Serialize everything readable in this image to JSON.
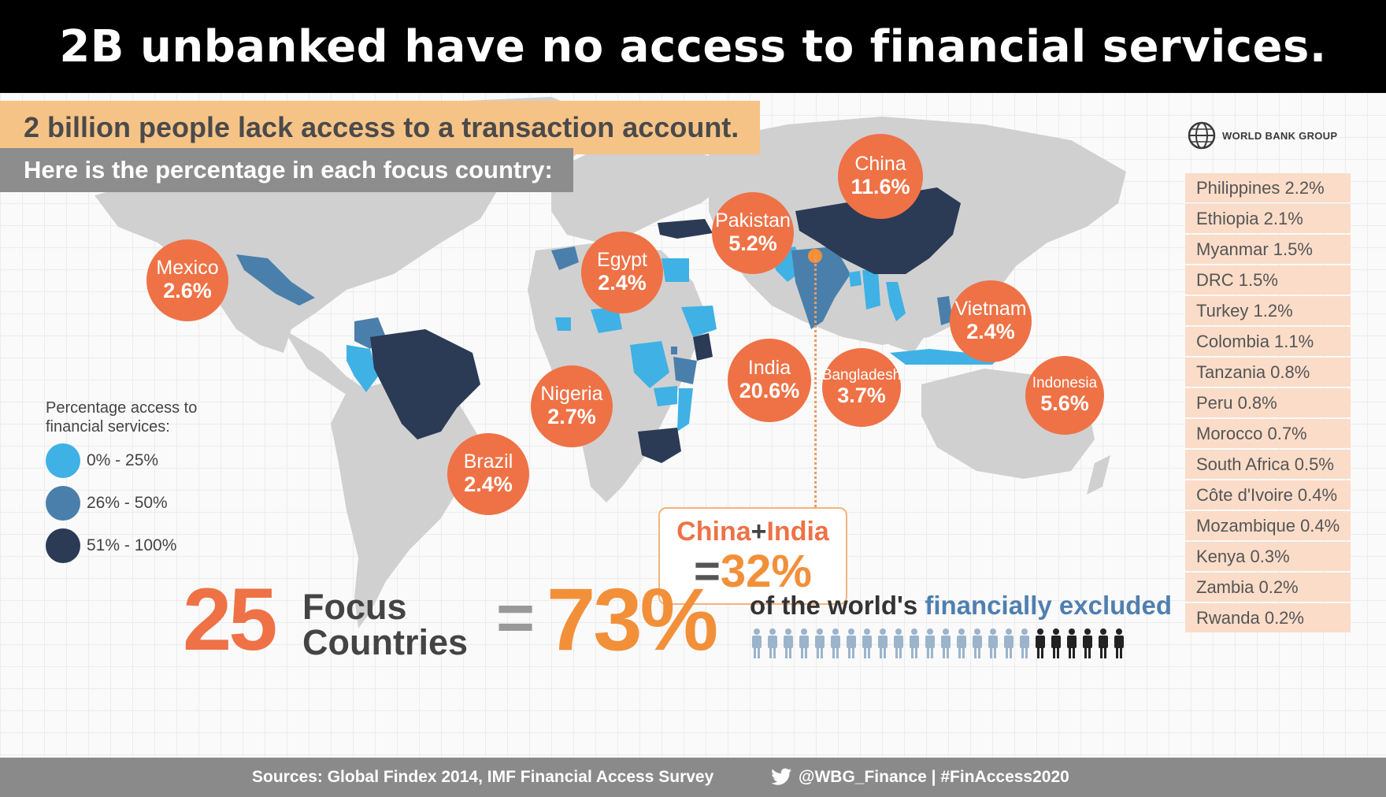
{
  "header": {
    "title": "2B unbanked have no access to financial services."
  },
  "infographic": {
    "headline": "2 billion people lack access to a transaction account.",
    "subheadline": "Here is the percentage in each focus country:",
    "brand": "WORLD BANK GROUP",
    "colors": {
      "orange": "#ee7246",
      "light_blue": "#3fb1e5",
      "mid_blue": "#4a7fab",
      "dark_navy": "#2b3a55",
      "land": "#d0d0d0"
    },
    "legend": {
      "title": "Percentage access to financial services:",
      "items": [
        {
          "label": "0% - 25%",
          "color": "#3fb1e5"
        },
        {
          "label": "26% - 50%",
          "color": "#4a7fab"
        },
        {
          "label": "51% - 100%",
          "color": "#2b3a55"
        }
      ]
    },
    "bubbles": [
      {
        "name": "China",
        "pct": "11.6%"
      },
      {
        "name": "Pakistan",
        "pct": "5.2%"
      },
      {
        "name": "Egypt",
        "pct": "2.4%"
      },
      {
        "name": "Mexico",
        "pct": "2.6%"
      },
      {
        "name": "Vietnam",
        "pct": "2.4%"
      },
      {
        "name": "India",
        "pct": "20.6%"
      },
      {
        "name": "Bangladesh",
        "pct": "3.7%"
      },
      {
        "name": "Indonesia",
        "pct": "5.6%"
      },
      {
        "name": "Nigeria",
        "pct": "2.7%"
      },
      {
        "name": "Brazil",
        "pct": "2.4%"
      }
    ],
    "country_list": [
      "Philippines 2.2%",
      "Ethiopia 2.1%",
      "Myanmar 1.5%",
      "DRC 1.5%",
      "Turkey 1.2%",
      "Colombia 1.1%",
      "Tanzania 0.8%",
      "Peru 0.8%",
      "Morocco 0.7%",
      "South Africa 0.5%",
      "Côte d'Ivoire 0.4%",
      "Mozambique 0.4%",
      "Kenya 0.3%",
      "Zambia 0.2%",
      "Rwanda 0.2%"
    ],
    "china_india": {
      "china": "China",
      "plus": "+",
      "india": "India",
      "eq": "=",
      "value": "32%"
    },
    "summary": {
      "number": "25",
      "focus": "Focus",
      "countries": "Countries",
      "eq": "=",
      "pct": "73%",
      "text_prefix": "of the world's ",
      "text_highlight": "financially excluded",
      "people_total": 24,
      "people_excluded": 18
    },
    "footer": {
      "sources": "Sources: Global Findex 2014, IMF Financial Access Survey",
      "twitter": "@WBG_Finance | #FinAccess2020"
    }
  }
}
